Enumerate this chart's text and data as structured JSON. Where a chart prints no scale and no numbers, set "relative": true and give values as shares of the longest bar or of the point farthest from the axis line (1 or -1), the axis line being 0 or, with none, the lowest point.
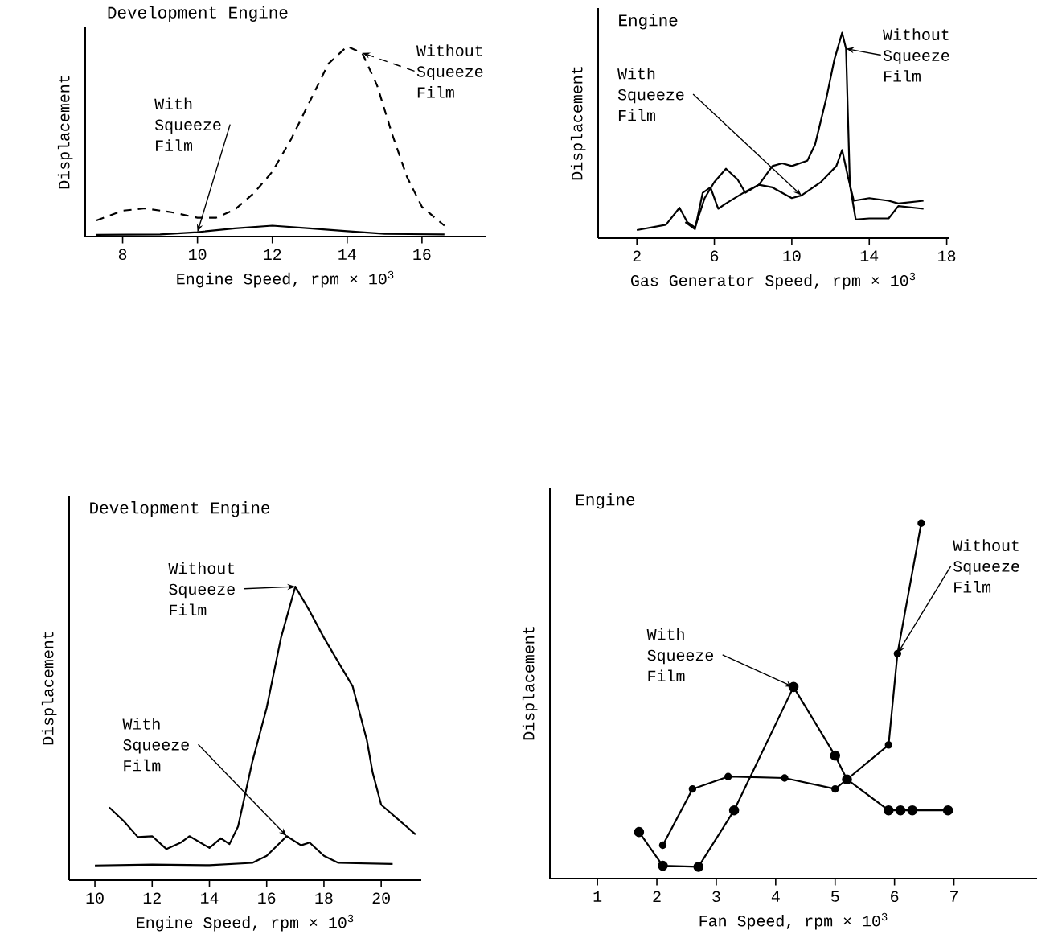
{
  "chart_data": [
    {
      "type": "line",
      "title": "Development Engine",
      "xlabel": "Engine Speed, rpm × 10$^{3}$",
      "ylabel": "Displacement",
      "relative": true,
      "xlim": [
        7,
        17.7
      ],
      "xticks": [
        8,
        10,
        12,
        14,
        16
      ],
      "series": [
        {
          "name": "Without Squeeze Film",
          "color": "#000000",
          "line_style": "dashed",
          "x": [
            7.3,
            8,
            8.6,
            9.3,
            10,
            10.5,
            11,
            11.5,
            12,
            12.5,
            13,
            13.5,
            14,
            14.4,
            14.8,
            15.2,
            15.6,
            16,
            16.6
          ],
          "values": [
            0.085,
            0.136,
            0.148,
            0.128,
            0.099,
            0.099,
            0.142,
            0.227,
            0.341,
            0.511,
            0.71,
            0.909,
            1.0,
            0.966,
            0.795,
            0.54,
            0.313,
            0.156,
            0.057
          ]
        },
        {
          "name": "With Squeeze Film",
          "color": "#000000",
          "line_style": "solid",
          "x": [
            7.3,
            9,
            10,
            11,
            12,
            13,
            14,
            15,
            16.6
          ],
          "values": [
            0.009,
            0.011,
            0.023,
            0.043,
            0.057,
            0.043,
            0.028,
            0.014,
            0.011
          ]
        }
      ]
    },
    {
      "type": "line",
      "title": "Engine",
      "xlabel": "Gas Generator Speed, rpm × 10$^{3}$",
      "ylabel": "Displacement",
      "relative": true,
      "xlim": [
        0,
        18.1
      ],
      "xticks": [
        2,
        6,
        10,
        14,
        18
      ],
      "series": [
        {
          "name": "Without Squeeze Film",
          "color": "#000000",
          "line_style": "solid",
          "x": [
            2,
            3.5,
            4.2,
            4.6,
            5,
            5.5,
            6,
            6.6,
            7.2,
            7.6,
            8.3,
            9,
            9.5,
            10,
            10.8,
            11.2,
            11.8,
            12.2,
            12.6,
            12.8,
            13.0,
            13.3,
            14,
            15,
            15.5,
            16.8
          ],
          "values": [
            0.039,
            0.065,
            0.148,
            0.078,
            0.052,
            0.195,
            0.273,
            0.338,
            0.286,
            0.221,
            0.26,
            0.351,
            0.364,
            0.351,
            0.377,
            0.455,
            0.688,
            0.87,
            1.0,
            0.922,
            0.26,
            0.091,
            0.096,
            0.096,
            0.156,
            0.143
          ]
        },
        {
          "name": "With Squeeze Film",
          "color": "#000000",
          "line_style": "solid",
          "x": [
            4.5,
            5,
            5.4,
            5.8,
            6.2,
            6.6,
            7.5,
            8.3,
            9,
            10,
            10.5,
            11.5,
            12.3,
            12.6,
            12.9,
            13.2,
            14,
            15,
            15.5,
            16.8
          ],
          "values": [
            0.078,
            0.044,
            0.221,
            0.247,
            0.143,
            0.169,
            0.221,
            0.26,
            0.247,
            0.195,
            0.208,
            0.273,
            0.351,
            0.429,
            0.299,
            0.182,
            0.195,
            0.182,
            0.169,
            0.182
          ]
        }
      ]
    },
    {
      "type": "line",
      "title": "Development Engine",
      "xlabel": "Engine Speed, rpm × 10$^{3}$",
      "ylabel": "Displacement",
      "relative": true,
      "xlim": [
        9.1,
        21.4
      ],
      "xticks": [
        10,
        12,
        14,
        16,
        18,
        20
      ],
      "series": [
        {
          "name": "Without Squeeze Film",
          "color": "#000000",
          "line_style": "solid",
          "x": [
            10.5,
            11,
            11.5,
            12,
            12.5,
            13,
            13.3,
            14,
            14.4,
            14.7,
            15,
            15.5,
            16,
            16.5,
            17,
            17.5,
            18,
            18.5,
            19,
            19.5,
            19.7,
            20,
            21.2
          ],
          "values": [
            0.248,
            0.202,
            0.147,
            0.15,
            0.106,
            0.128,
            0.15,
            0.11,
            0.143,
            0.123,
            0.183,
            0.404,
            0.587,
            0.826,
            1.0,
            0.917,
            0.826,
            0.743,
            0.661,
            0.477,
            0.367,
            0.257,
            0.156
          ]
        },
        {
          "name": "With Squeeze Film",
          "color": "#000000",
          "line_style": "solid",
          "x": [
            10,
            12,
            14,
            15.5,
            16,
            16.7,
            17.2,
            17.5,
            18,
            18.5,
            20.4
          ],
          "values": [
            0.05,
            0.053,
            0.051,
            0.059,
            0.083,
            0.15,
            0.119,
            0.128,
            0.083,
            0.059,
            0.055
          ]
        }
      ]
    },
    {
      "type": "line",
      "title": "Engine",
      "xlabel": "Fan Speed, rpm × 10$^{3}$",
      "ylabel": "Displacement",
      "relative": true,
      "xlim": [
        0.2,
        8.4
      ],
      "xticks": [
        1,
        2,
        3,
        4,
        5,
        6,
        7
      ],
      "marker": "circle",
      "series": [
        {
          "name": "With Squeeze Film",
          "color": "#000000",
          "line_style": "solid",
          "x": [
            1.7,
            2.1,
            2.7,
            3.3,
            4.3,
            5,
            5.2,
            5.9,
            6.1,
            6.3,
            6.9
          ],
          "values": [
            0.131,
            0.036,
            0.033,
            0.192,
            0.539,
            0.346,
            0.279,
            0.192,
            0.192,
            0.192,
            0.192
          ]
        },
        {
          "name": "Without Squeeze Film",
          "color": "#000000",
          "line_style": "solid",
          "x": [
            2.1,
            2.6,
            3.2,
            4.15,
            5,
            5.2,
            5.9,
            6.05,
            6.45
          ],
          "values": [
            0.094,
            0.252,
            0.287,
            0.283,
            0.252,
            0.279,
            0.376,
            0.633,
            1.0
          ]
        }
      ]
    }
  ]
}
